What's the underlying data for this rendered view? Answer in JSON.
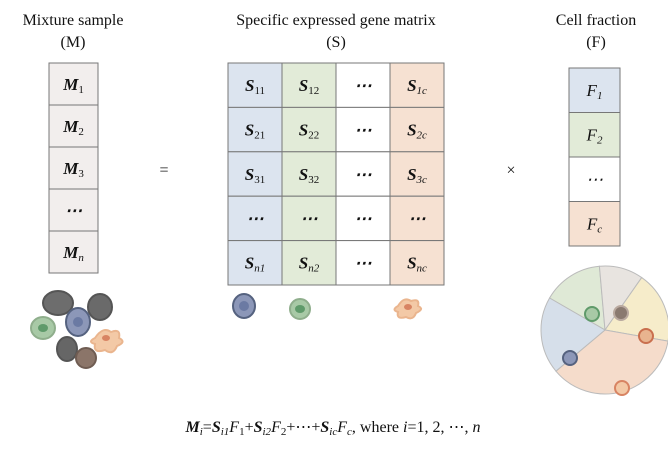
{
  "mixture": {
    "title": "Mixture sample",
    "symbol": "(M)",
    "cells": [
      {
        "main": "M",
        "sub": "1"
      },
      {
        "main": "M",
        "sub": "2"
      },
      {
        "main": "M",
        "sub": "3"
      },
      {
        "main": "⋯"
      },
      {
        "main": "M",
        "sub": "n"
      }
    ]
  },
  "equals": "=",
  "matrix": {
    "title": "Specific expressed gene matrix",
    "symbol": "(S)",
    "rows": [
      [
        {
          "main": "S",
          "sub": "11"
        },
        {
          "main": "S",
          "sub": "12"
        },
        {
          "main": "⋯"
        },
        {
          "main": "S",
          "sub": "1c"
        }
      ],
      [
        {
          "main": "S",
          "sub": "21"
        },
        {
          "main": "S",
          "sub": "22"
        },
        {
          "main": "⋯"
        },
        {
          "main": "S",
          "sub": "2c"
        }
      ],
      [
        {
          "main": "S",
          "sub": "31"
        },
        {
          "main": "S",
          "sub": "32"
        },
        {
          "main": "⋯"
        },
        {
          "main": "S",
          "sub": "3c"
        }
      ],
      [
        {
          "main": "⋯"
        },
        {
          "main": "⋯"
        },
        {
          "main": "⋯"
        },
        {
          "main": "⋯"
        }
      ],
      [
        {
          "main": "S",
          "sub": "n1"
        },
        {
          "main": "S",
          "sub": "n2"
        },
        {
          "main": "⋯"
        },
        {
          "main": "S",
          "sub": "nc"
        }
      ]
    ]
  },
  "times": "×",
  "fraction": {
    "title": "Cell fraction",
    "symbol": "(F)",
    "cells": [
      {
        "main": "F",
        "sub": "1"
      },
      {
        "main": "F",
        "sub": "2"
      },
      {
        "main": "⋯"
      },
      {
        "main": "F",
        "sub": "c"
      }
    ]
  },
  "formula": {
    "parts": [
      "M",
      "i",
      "=",
      "S",
      "i1",
      "F",
      "1",
      "+",
      "S",
      "i2",
      "F",
      "2",
      "+⋯+",
      "S",
      "ic",
      "F",
      "c",
      ", where ",
      "i",
      "=1, 2, ⋯, ",
      "n"
    ]
  }
}
